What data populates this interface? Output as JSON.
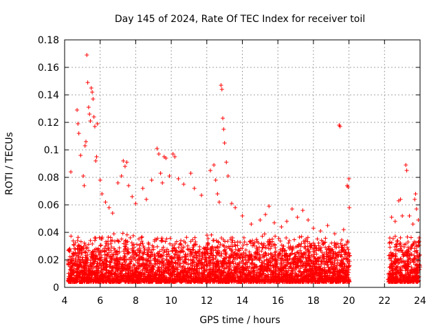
{
  "chart_data": {
    "type": "scatter",
    "title": "Day 145 of 2024, Rate Of TEC Index for receiver toil",
    "xlabel": "GPS time / hours",
    "ylabel": "ROTI / TECUs",
    "xlim": [
      4,
      24
    ],
    "ylim": [
      0,
      0.18
    ],
    "x_ticks": [
      4,
      6,
      8,
      10,
      12,
      14,
      16,
      18,
      20,
      22,
      24
    ],
    "x_tick_labels": [
      "4",
      "6",
      "8",
      "10",
      "12",
      "14",
      "16",
      "18",
      "20",
      "22",
      "24"
    ],
    "y_ticks": [
      0,
      0.02,
      0.04,
      0.06,
      0.08,
      0.1,
      0.12,
      0.14,
      0.16,
      0.18
    ],
    "y_tick_labels": [
      "0",
      "0.02",
      "0.04",
      "0.06",
      "0.08",
      "0.1",
      "0.12",
      "0.14",
      "0.16",
      "0.18"
    ],
    "grid": true,
    "marker": "+",
    "color": "#ff0000",
    "data_gaps_hours": [
      [
        20.1,
        22.2
      ]
    ],
    "series": [
      {
        "name": "ROTI",
        "points": [
          [
            4.35,
            0.084
          ],
          [
            4.7,
            0.129
          ],
          [
            4.75,
            0.119
          ],
          [
            4.8,
            0.112
          ],
          [
            4.9,
            0.096
          ],
          [
            5.05,
            0.081
          ],
          [
            5.1,
            0.074
          ],
          [
            5.15,
            0.103
          ],
          [
            5.2,
            0.106
          ],
          [
            5.25,
            0.169
          ],
          [
            5.3,
            0.149
          ],
          [
            5.35,
            0.131
          ],
          [
            5.4,
            0.126
          ],
          [
            5.45,
            0.121
          ],
          [
            5.5,
            0.145
          ],
          [
            5.55,
            0.142
          ],
          [
            5.6,
            0.137
          ],
          [
            5.65,
            0.124
          ],
          [
            5.7,
            0.117
          ],
          [
            5.75,
            0.092
          ],
          [
            5.8,
            0.095
          ],
          [
            5.85,
            0.119
          ],
          [
            6.0,
            0.078
          ],
          [
            6.1,
            0.068
          ],
          [
            6.3,
            0.062
          ],
          [
            6.5,
            0.058
          ],
          [
            6.7,
            0.054
          ],
          [
            7.0,
            0.076
          ],
          [
            7.2,
            0.081
          ],
          [
            7.3,
            0.092
          ],
          [
            7.4,
            0.088
          ],
          [
            7.5,
            0.091
          ],
          [
            7.6,
            0.074
          ],
          [
            7.8,
            0.066
          ],
          [
            8.0,
            0.061
          ],
          [
            8.4,
            0.072
          ],
          [
            8.6,
            0.064
          ],
          [
            8.9,
            0.078
          ],
          [
            9.2,
            0.101
          ],
          [
            9.3,
            0.097
          ],
          [
            9.4,
            0.083
          ],
          [
            9.5,
            0.076
          ],
          [
            9.6,
            0.095
          ],
          [
            9.7,
            0.094
          ],
          [
            9.9,
            0.081
          ],
          [
            10.1,
            0.097
          ],
          [
            10.2,
            0.095
          ],
          [
            10.4,
            0.079
          ],
          [
            10.7,
            0.075
          ],
          [
            11.1,
            0.083
          ],
          [
            11.3,
            0.072
          ],
          [
            11.7,
            0.067
          ],
          [
            12.2,
            0.085
          ],
          [
            12.4,
            0.089
          ],
          [
            12.5,
            0.078
          ],
          [
            12.6,
            0.068
          ],
          [
            12.7,
            0.062
          ],
          [
            12.8,
            0.147
          ],
          [
            12.85,
            0.144
          ],
          [
            12.9,
            0.123
          ],
          [
            12.95,
            0.115
          ],
          [
            13.0,
            0.105
          ],
          [
            13.1,
            0.091
          ],
          [
            13.2,
            0.081
          ],
          [
            13.4,
            0.061
          ],
          [
            13.6,
            0.058
          ],
          [
            14.0,
            0.052
          ],
          [
            14.5,
            0.046
          ],
          [
            15.0,
            0.049
          ],
          [
            15.3,
            0.053
          ],
          [
            15.5,
            0.059
          ],
          [
            15.8,
            0.047
          ],
          [
            16.2,
            0.044
          ],
          [
            16.5,
            0.048
          ],
          [
            16.8,
            0.057
          ],
          [
            17.1,
            0.051
          ],
          [
            17.4,
            0.056
          ],
          [
            17.7,
            0.049
          ],
          [
            18.0,
            0.043
          ],
          [
            18.4,
            0.041
          ],
          [
            18.8,
            0.045
          ],
          [
            19.2,
            0.039
          ],
          [
            19.45,
            0.118
          ],
          [
            19.5,
            0.117
          ],
          [
            19.7,
            0.042
          ],
          [
            19.9,
            0.074
          ],
          [
            19.95,
            0.073
          ],
          [
            20.0,
            0.079
          ],
          [
            20.02,
            0.058
          ],
          [
            22.4,
            0.051
          ],
          [
            22.6,
            0.048
          ],
          [
            22.8,
            0.063
          ],
          [
            22.9,
            0.064
          ],
          [
            23.0,
            0.052
          ],
          [
            23.2,
            0.089
          ],
          [
            23.25,
            0.085
          ],
          [
            23.4,
            0.052
          ],
          [
            23.6,
            0.046
          ],
          [
            23.7,
            0.064
          ],
          [
            23.75,
            0.068
          ],
          [
            23.8,
            0.057
          ],
          [
            23.9,
            0.049
          ]
        ],
        "baseline_band": {
          "x_ranges": [
            [
              4.2,
              20.05
            ],
            [
              22.2,
              24.0
            ]
          ],
          "y_range": [
            0.004,
            0.04
          ]
        }
      }
    ]
  }
}
